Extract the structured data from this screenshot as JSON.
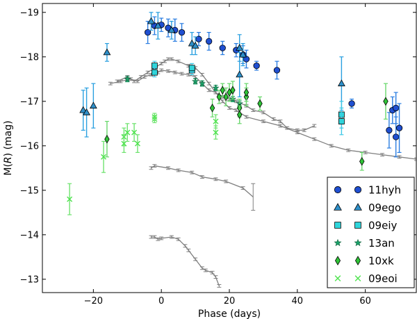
{
  "chart_data": {
    "type": "scatter",
    "xlabel": "Phase (days)",
    "ylabel_prefix": "M(",
    "ylabel_var": "R",
    "ylabel_suffix": ") (mag)",
    "xlim": [
      -35,
      75
    ],
    "ylim": [
      -12.7,
      -19.2
    ],
    "x_ticks": [
      -20,
      0,
      20,
      40,
      60
    ],
    "x_tick_labels": [
      "−20",
      "0",
      "20",
      "40",
      "60"
    ],
    "y_ticks": [
      -19,
      -18,
      -17,
      -16,
      -15,
      -14,
      -13
    ],
    "y_tick_labels": [
      "−19",
      "−18",
      "−17",
      "−16",
      "−15",
      "−14",
      "−13"
    ],
    "legend_position": "lower-right",
    "series": [
      {
        "name": "11hyh",
        "marker": "circle",
        "color": "#1f4fd1",
        "err_color": "#2a7de1",
        "points": [
          [
            -4,
            -18.55,
            0.25
          ],
          [
            -2,
            -18.7,
            0.2
          ],
          [
            0,
            -18.72,
            0.15
          ],
          [
            2,
            -18.65,
            0.2
          ],
          [
            4,
            -18.6,
            0.25
          ],
          [
            6,
            -18.55,
            0.2
          ],
          [
            11,
            -18.4,
            0.15
          ],
          [
            14,
            -18.35,
            0.2
          ],
          [
            18,
            -18.2,
            0.15
          ],
          [
            22,
            -18.15,
            0.15
          ],
          [
            24,
            -18.05,
            0.2
          ],
          [
            25,
            -17.95,
            0.2
          ],
          [
            28,
            -17.8,
            0.1
          ],
          [
            34,
            -17.7,
            0.2
          ],
          [
            56,
            -16.95,
            0.1
          ],
          [
            67,
            -16.35,
            0.4
          ],
          [
            68,
            -16.8,
            0.3
          ],
          [
            69,
            -16.2,
            0.45
          ],
          [
            69,
            -16.85,
            0.35
          ],
          [
            70,
            -16.4,
            0.55
          ]
        ]
      },
      {
        "name": "09ego",
        "marker": "triangle",
        "color": "#2e8fc9",
        "err_color": "#2aa0e0",
        "points": [
          [
            -23,
            -16.8,
            0.45
          ],
          [
            -22,
            -16.75,
            0.55
          ],
          [
            -20,
            -16.9,
            0.5
          ],
          [
            -16,
            -18.1,
            0.2
          ],
          [
            -3,
            -18.8,
            0.2
          ],
          [
            -1,
            -18.7,
            0.3
          ],
          [
            3,
            -18.6,
            0.2
          ],
          [
            9,
            -18.3,
            0.25
          ],
          [
            10,
            -18.25,
            0.2
          ],
          [
            23,
            -18.2,
            0.3
          ],
          [
            23,
            -17.6,
            0.5
          ],
          [
            24,
            -18.05,
            0.25
          ],
          [
            53,
            -17.4,
            0.6
          ]
        ]
      },
      {
        "name": "09eiy",
        "marker": "square",
        "color": "#2fd4da",
        "err_color": "#3fc9e6",
        "points": [
          [
            -2,
            -17.8,
            0.1
          ],
          [
            -2,
            -17.65,
            0.1
          ],
          [
            9,
            -17.7,
            0.1
          ],
          [
            9,
            -17.75,
            0.1
          ],
          [
            53,
            -16.7,
            0.3
          ],
          [
            53,
            -16.55,
            0.3
          ]
        ]
      },
      {
        "name": "13an",
        "marker": "star",
        "color": "#1aa36a",
        "err_color": "#1aa36a",
        "points": [
          [
            -10,
            -17.5,
            0.06
          ],
          [
            10,
            -17.45,
            0.06
          ],
          [
            12,
            -17.4,
            0.06
          ],
          [
            16,
            -17.3,
            0.06
          ],
          [
            21,
            -17.05,
            0.06
          ],
          [
            23,
            -16.95,
            0.06
          ]
        ]
      },
      {
        "name": "10xk",
        "marker": "diamond",
        "color": "#2ec436",
        "err_color": "#69d86c",
        "points": [
          [
            -16,
            -16.15,
            0.4
          ],
          [
            15,
            -16.85,
            0.2
          ],
          [
            17,
            -17.1,
            0.15
          ],
          [
            18,
            -17.25,
            0.15
          ],
          [
            19,
            -17.1,
            0.2
          ],
          [
            20,
            -17.2,
            0.2
          ],
          [
            21,
            -17.25,
            0.2
          ],
          [
            23,
            -16.85,
            0.2
          ],
          [
            23,
            -16.7,
            0.2
          ],
          [
            25,
            -17.1,
            0.2
          ],
          [
            25,
            -17.2,
            0.2
          ],
          [
            29,
            -16.95,
            0.15
          ],
          [
            59,
            -15.65,
            0.2
          ],
          [
            66,
            -17.0,
            0.4
          ]
        ]
      },
      {
        "name": "09eoi",
        "marker": "x",
        "color": "#4ee34e",
        "err_color": "#6fe36f",
        "points": [
          [
            -27,
            -14.8,
            0.35
          ],
          [
            -17,
            -15.75,
            0.35
          ],
          [
            -11,
            -16.2,
            0.2
          ],
          [
            -11,
            -16.05,
            0.2
          ],
          [
            -10,
            -16.3,
            0.2
          ],
          [
            -8,
            -16.3,
            0.2
          ],
          [
            -7,
            -16.05,
            0.2
          ],
          [
            -2,
            -16.6,
            0.08
          ],
          [
            -2,
            -16.65,
            0.08
          ],
          [
            16,
            -16.3,
            0.15
          ],
          [
            16,
            -16.55,
            0.15
          ]
        ]
      }
    ],
    "templates": [
      {
        "name": "template-a",
        "color": "#7f7f7f",
        "points": [
          [
            -13,
            -17.45
          ],
          [
            -10,
            -17.55
          ],
          [
            -8,
            -17.45
          ],
          [
            -6,
            -17.55
          ],
          [
            -4,
            -17.65
          ],
          [
            -2,
            -17.75
          ],
          [
            0,
            -17.85
          ],
          [
            1,
            -17.9
          ],
          [
            2,
            -17.95
          ],
          [
            3,
            -17.95
          ],
          [
            5,
            -17.9
          ],
          [
            8,
            -17.8
          ],
          [
            10,
            -17.75
          ],
          [
            12,
            -17.6
          ],
          [
            14,
            -17.4
          ],
          [
            16,
            -17.2
          ],
          [
            18,
            -17.0
          ],
          [
            20,
            -16.85
          ],
          [
            22,
            -16.8
          ],
          [
            25,
            -16.65
          ],
          [
            30,
            -16.55
          ],
          [
            35,
            -16.45
          ],
          [
            40,
            -16.3
          ],
          [
            45,
            -16.15
          ],
          [
            50,
            -16.0
          ],
          [
            55,
            -15.9
          ],
          [
            60,
            -15.85
          ],
          [
            65,
            -15.8
          ],
          [
            70,
            -15.75
          ],
          [
            75,
            -15.7
          ]
        ]
      },
      {
        "name": "template-b",
        "color": "#7f7f7f",
        "points": [
          [
            -15,
            -17.4
          ],
          [
            -12,
            -17.45
          ],
          [
            -9,
            -17.5
          ],
          [
            -7,
            -17.45
          ],
          [
            -5,
            -17.55
          ],
          [
            -3,
            -17.6
          ],
          [
            -1,
            -17.65
          ],
          [
            0,
            -17.7
          ],
          [
            2,
            -17.68
          ],
          [
            4,
            -17.65
          ],
          [
            6,
            -17.62
          ],
          [
            8,
            -17.6
          ],
          [
            10,
            -17.55
          ],
          [
            12,
            -17.4
          ],
          [
            14,
            -17.25
          ],
          [
            16,
            -17.2
          ],
          [
            18,
            -17.1
          ],
          [
            20,
            -17.05
          ],
          [
            22,
            -17.0
          ],
          [
            25,
            -16.9
          ],
          [
            27,
            -16.8
          ],
          [
            30,
            -16.75
          ],
          [
            33,
            -16.6
          ],
          [
            35,
            -16.55
          ],
          [
            37,
            -16.4
          ],
          [
            40,
            -16.35
          ],
          [
            42,
            -16.35
          ],
          [
            45,
            -16.45
          ]
        ]
      },
      {
        "name": "template-c",
        "color": "#7f7f7f",
        "points": [
          [
            -3,
            -15.5
          ],
          [
            -2,
            -15.55
          ],
          [
            2,
            -15.5
          ],
          [
            5,
            -15.45
          ],
          [
            9,
            -15.4
          ],
          [
            12,
            -15.3
          ],
          [
            16,
            -15.25
          ],
          [
            19,
            -15.2
          ],
          [
            24,
            -15.05
          ],
          [
            27,
            -14.85
          ]
        ],
        "last_err": 0.3
      },
      {
        "name": "template-d",
        "color": "#7f7f7f",
        "points": [
          [
            -3,
            -13.95
          ],
          [
            -2,
            -13.95
          ],
          [
            -1,
            -13.9
          ],
          [
            0,
            -13.92
          ],
          [
            3,
            -13.95
          ],
          [
            5,
            -13.9
          ],
          [
            7,
            -13.75
          ],
          [
            8,
            -13.65
          ],
          [
            10,
            -13.45
          ],
          [
            12,
            -13.25
          ],
          [
            13,
            -13.2
          ],
          [
            15,
            -13.15
          ],
          [
            16,
            -13.05
          ],
          [
            17,
            -12.85
          ]
        ]
      }
    ]
  }
}
